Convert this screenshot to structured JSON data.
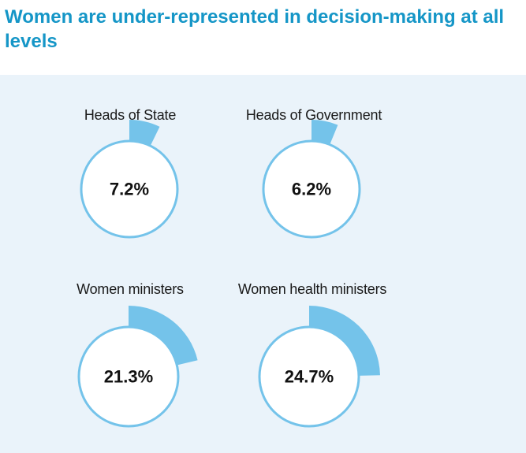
{
  "page": {
    "title": "Women are under-represented in decision-making at all levels"
  },
  "colors": {
    "title": "#1596c7",
    "panel_background": "#eaf3fa",
    "arc_fill": "#74c3ea",
    "circle_stroke": "#74c3ea",
    "circle_fill": "#ffffff"
  },
  "chart_data": [
    {
      "type": "pie",
      "label": "Heads of State",
      "value": 7.2,
      "value_label": "7.2%"
    },
    {
      "type": "pie",
      "label": "Heads of Government",
      "value": 6.2,
      "value_label": "6.2%"
    },
    {
      "type": "pie",
      "label": "Women ministers",
      "value": 21.3,
      "value_label": "21.3%"
    },
    {
      "type": "pie",
      "label": "Women health ministers",
      "value": 24.7,
      "value_label": "24.7%"
    }
  ]
}
